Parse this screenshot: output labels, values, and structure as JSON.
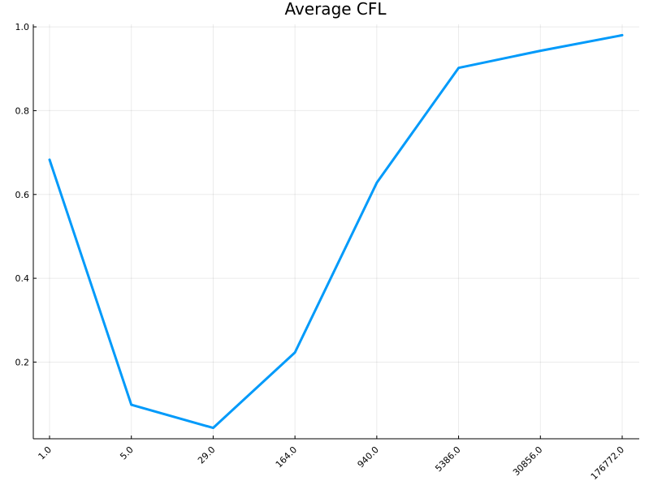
{
  "chart_data": {
    "type": "line",
    "title": "Average CFL",
    "xlabel": "",
    "ylabel": "",
    "x_scale": "log",
    "categories": [
      "1.0",
      "5.0",
      "29.0",
      "164.0",
      "940.0",
      "5386.0",
      "30856.0",
      "176772.0"
    ],
    "x": [
      1.0,
      5.0,
      29.0,
      164.0,
      940.0,
      5386.0,
      30856.0,
      176772.0
    ],
    "series": [
      {
        "values": [
          0.683,
          0.098,
          0.043,
          0.223,
          0.628,
          0.902,
          0.943,
          0.98
        ],
        "color": "#009AFA"
      }
    ],
    "yticks": [
      0.2,
      0.4,
      0.6,
      0.8,
      1.0
    ],
    "ytick_labels": [
      "0.2",
      "0.4",
      "0.6",
      "0.8",
      "1.0"
    ],
    "ylim": [
      0.017,
      1.006
    ],
    "grid": true,
    "legend": "none"
  }
}
